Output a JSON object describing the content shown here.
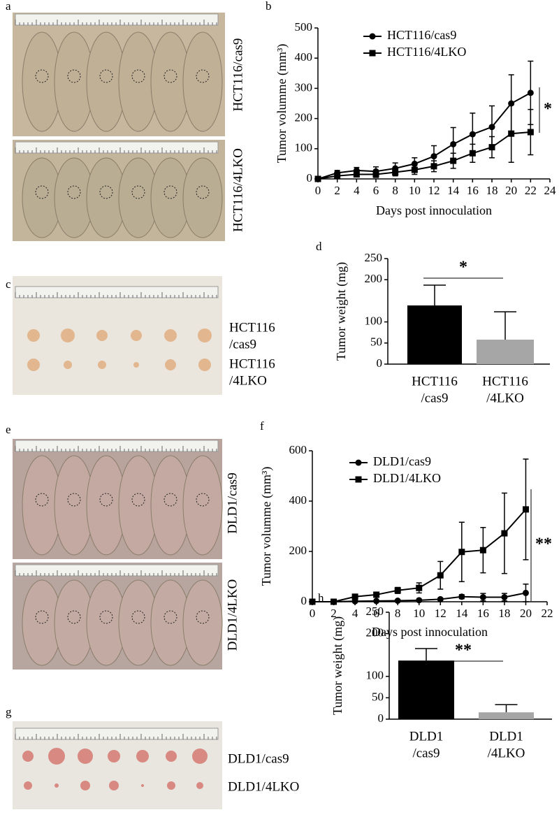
{
  "panel_labels": [
    "a",
    "b",
    "c",
    "d",
    "e",
    "f",
    "g",
    "h"
  ],
  "photo_labels": {
    "a": [
      "HCT116/cas9",
      "HCT116/4LKO"
    ],
    "c": [
      [
        "HCT116",
        "/cas9"
      ],
      [
        "HCT116",
        "/4LKO"
      ]
    ],
    "e": [
      "DLD1/cas9",
      "DLD1/4LKO"
    ],
    "g": [
      "DLD1/cas9",
      "DLD1/4LKO"
    ]
  },
  "chart_data": [
    {
      "type": "line",
      "xlabel": "Days post innoculation",
      "ylabel": "Tumor volumme (mm³)",
      "x": [
        0,
        2,
        4,
        6,
        8,
        10,
        12,
        14,
        16,
        18,
        20,
        22
      ],
      "series": [
        {
          "name": "HCT116/cas9",
          "color": "#000000",
          "marker": "circle",
          "values": [
            0,
            20,
            28,
            25,
            35,
            50,
            75,
            115,
            148,
            172,
            250,
            285
          ],
          "errors": [
            0,
            8,
            10,
            15,
            18,
            20,
            35,
            55,
            70,
            70,
            95,
            105
          ]
        },
        {
          "name": "HCT116/4LKO",
          "color": "#000000",
          "marker": "square",
          "values": [
            0,
            10,
            15,
            15,
            22,
            30,
            42,
            60,
            85,
            105,
            150,
            155
          ],
          "errors": [
            0,
            5,
            8,
            10,
            12,
            15,
            18,
            25,
            30,
            35,
            95,
            75
          ]
        }
      ],
      "xlim": [
        0,
        24
      ],
      "xticks": [
        0,
        2,
        4,
        6,
        8,
        10,
        12,
        14,
        16,
        18,
        20,
        22,
        24
      ],
      "ylim": [
        0,
        500
      ],
      "yticks": [
        0,
        100,
        200,
        300,
        400,
        500
      ],
      "legend": "upper left",
      "annotation": "*"
    },
    {
      "type": "bar",
      "ylabel": "Tumor weight (mg)",
      "categories": [
        [
          "HCT116",
          "/cas9"
        ],
        [
          "HCT116",
          "/4LKO"
        ]
      ],
      "values": [
        139,
        58
      ],
      "errors": [
        48,
        66
      ],
      "colors": [
        "#000000",
        "#a6a6a6"
      ],
      "ylim": [
        0,
        250
      ],
      "yticks": [
        0,
        50,
        100,
        200,
        250
      ],
      "annotation": "*"
    },
    {
      "type": "line",
      "xlabel": "Days post innoculation",
      "ylabel": "Tumor volumme (mm³)",
      "x": [
        0,
        2,
        4,
        6,
        8,
        10,
        12,
        14,
        16,
        18,
        20
      ],
      "series": [
        {
          "name": "DLD1/cas9",
          "color": "#000000",
          "marker": "circle",
          "values": [
            0,
            0,
            2,
            3,
            4,
            6,
            10,
            20,
            18,
            18,
            35
          ],
          "errors": [
            0,
            0,
            2,
            2,
            3,
            4,
            5,
            8,
            15,
            15,
            35
          ]
        },
        {
          "name": "DLD1/4LKO",
          "color": "#000000",
          "marker": "square",
          "values": [
            0,
            0,
            20,
            28,
            45,
            55,
            105,
            198,
            205,
            272,
            367
          ],
          "errors": [
            0,
            0,
            8,
            10,
            12,
            20,
            55,
            118,
            90,
            160,
            200
          ]
        }
      ],
      "xlim": [
        0,
        22
      ],
      "xticks": [
        0,
        2,
        4,
        6,
        8,
        10,
        12,
        14,
        16,
        18,
        20,
        22
      ],
      "ylim": [
        0,
        600
      ],
      "yticks": [
        0,
        200,
        400,
        600
      ],
      "legend": "upper left",
      "annotation": "**"
    },
    {
      "type": "bar",
      "ylabel": "Tumor weight (mg)",
      "categories": [
        [
          "DLD1",
          "/cas9"
        ],
        [
          "DLD1",
          "/4LKO"
        ]
      ],
      "values": [
        137,
        16
      ],
      "errors": [
        28,
        18
      ],
      "colors": [
        "#000000",
        "#a6a6a6"
      ],
      "ylim": [
        0,
        250
      ],
      "yticks": [
        0,
        50,
        100,
        200,
        250
      ],
      "annotation": "**"
    }
  ]
}
